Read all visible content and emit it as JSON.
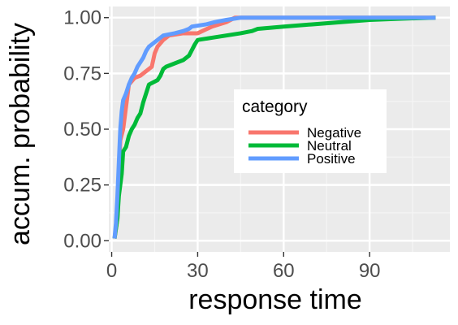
{
  "chart_data": {
    "type": "line",
    "title": "",
    "xlabel": "response time",
    "ylabel": "accum. probability",
    "xlim": [
      -1,
      118
    ],
    "ylim": [
      -0.05,
      1.05
    ],
    "x_ticks": [
      0,
      30,
      60,
      90
    ],
    "x_tick_labels": [
      "0",
      "30",
      "60",
      "90"
    ],
    "y_ticks": [
      0,
      0.25,
      0.5,
      0.75,
      1.0
    ],
    "y_tick_labels": [
      "0.00",
      "0.25",
      "0.50",
      "0.75",
      "1.00"
    ],
    "grid": true,
    "legend": {
      "title": "category",
      "placement": "right-inside"
    },
    "series": [
      {
        "name": "Negative",
        "color": "#f8766d",
        "points": [
          [
            1,
            0.01
          ],
          [
            2,
            0.1
          ],
          [
            2.5,
            0.3
          ],
          [
            3,
            0.45
          ],
          [
            4,
            0.5
          ],
          [
            5,
            0.6
          ],
          [
            6,
            0.7
          ],
          [
            8,
            0.73
          ],
          [
            10,
            0.74
          ],
          [
            12,
            0.76
          ],
          [
            14,
            0.78
          ],
          [
            15,
            0.84
          ],
          [
            16,
            0.87
          ],
          [
            18,
            0.9
          ],
          [
            20,
            0.92
          ],
          [
            25,
            0.93
          ],
          [
            30,
            0.93
          ],
          [
            35,
            0.96
          ],
          [
            40,
            0.98
          ],
          [
            43,
            1.0
          ],
          [
            60,
            1.0
          ],
          [
            90,
            1.0
          ],
          [
            113,
            1.0
          ]
        ]
      },
      {
        "name": "Neutral",
        "color": "#00ba38",
        "points": [
          [
            1,
            0.01
          ],
          [
            2,
            0.1
          ],
          [
            2.5,
            0.2
          ],
          [
            3,
            0.25
          ],
          [
            3.5,
            0.3
          ],
          [
            4,
            0.4
          ],
          [
            5,
            0.42
          ],
          [
            6,
            0.47
          ],
          [
            7,
            0.5
          ],
          [
            8,
            0.52
          ],
          [
            9,
            0.55
          ],
          [
            10,
            0.57
          ],
          [
            11,
            0.62
          ],
          [
            12,
            0.66
          ],
          [
            13,
            0.7
          ],
          [
            16,
            0.72
          ],
          [
            17,
            0.74
          ],
          [
            18,
            0.77
          ],
          [
            19,
            0.78
          ],
          [
            25,
            0.81
          ],
          [
            27,
            0.83
          ],
          [
            29,
            0.88
          ],
          [
            30,
            0.9
          ],
          [
            35,
            0.91
          ],
          [
            40,
            0.92
          ],
          [
            45,
            0.93
          ],
          [
            49,
            0.94
          ],
          [
            51,
            0.95
          ],
          [
            60,
            0.96
          ],
          [
            70,
            0.97
          ],
          [
            80,
            0.98
          ],
          [
            90,
            0.99
          ],
          [
            100,
            0.995
          ],
          [
            113,
            1.0
          ]
        ]
      },
      {
        "name": "Positive",
        "color": "#619cff",
        "points": [
          [
            1,
            0.01
          ],
          [
            1.5,
            0.08
          ],
          [
            2,
            0.2
          ],
          [
            2.5,
            0.35
          ],
          [
            3,
            0.5
          ],
          [
            3.5,
            0.58
          ],
          [
            4,
            0.63
          ],
          [
            5,
            0.66
          ],
          [
            6,
            0.7
          ],
          [
            7,
            0.73
          ],
          [
            8,
            0.75
          ],
          [
            9,
            0.78
          ],
          [
            10,
            0.8
          ],
          [
            11,
            0.82
          ],
          [
            12,
            0.85
          ],
          [
            13,
            0.87
          ],
          [
            14,
            0.88
          ],
          [
            15,
            0.89
          ],
          [
            16,
            0.9
          ],
          [
            18,
            0.92
          ],
          [
            22,
            0.93
          ],
          [
            25,
            0.94
          ],
          [
            27,
            0.95
          ],
          [
            28,
            0.96
          ],
          [
            33,
            0.97
          ],
          [
            36,
            0.98
          ],
          [
            40,
            0.99
          ],
          [
            45,
            1.0
          ],
          [
            60,
            1.0
          ],
          [
            90,
            1.0
          ],
          [
            113,
            1.0
          ]
        ]
      }
    ]
  }
}
